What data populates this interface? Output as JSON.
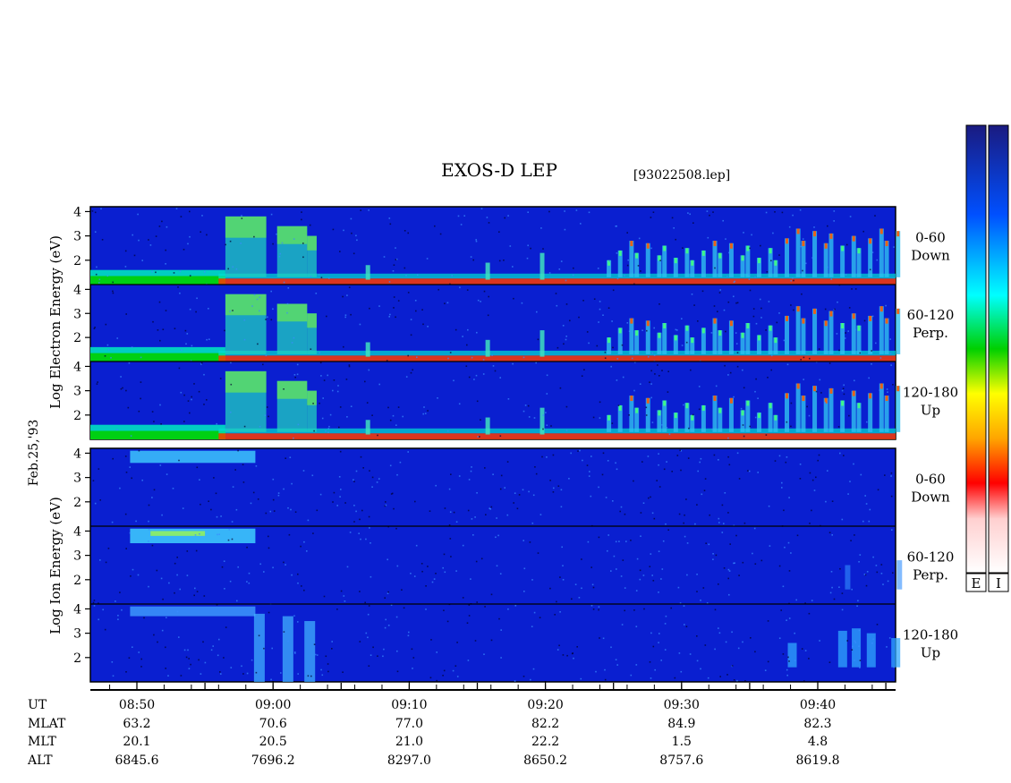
{
  "title": "EXOS-D LEP",
  "file_label": "[93022508.lep]",
  "date_label": "Feb.25,'93",
  "colors": {
    "background": "#ffffff",
    "panel_base": "#0a1fd0",
    "colorbar_stops": [
      "#ffffff",
      "#ff0000",
      "#ffa500",
      "#ffff00",
      "#00d000",
      "#00ffff",
      "#0050ff",
      "#1a1a80"
    ]
  },
  "panels": {
    "electron": {
      "ylabel_lines": [
        "Log",
        "Electron",
        "Energy",
        "(eV)"
      ],
      "subpanels": [
        {
          "angle": "0-60",
          "direction": "Down",
          "yticks": [
            "4",
            "3",
            "2"
          ]
        },
        {
          "angle": "60-120",
          "direction": "Perp.",
          "yticks": [
            "4",
            "3",
            "2"
          ]
        },
        {
          "angle": "120-180",
          "direction": "Up",
          "yticks": [
            "4",
            "3",
            "2"
          ]
        }
      ]
    },
    "ion": {
      "ylabel_lines": [
        "Log",
        "Ion",
        "Energy",
        "(eV)"
      ],
      "subpanels": [
        {
          "angle": "0-60",
          "direction": "Down",
          "yticks": [
            "4",
            "3",
            "2"
          ]
        },
        {
          "angle": "60-120",
          "direction": "Perp.",
          "yticks": [
            "4",
            "3",
            "2"
          ]
        },
        {
          "angle": "120-180",
          "direction": "Up",
          "yticks": [
            "4",
            "3",
            "2"
          ]
        }
      ]
    }
  },
  "colorbars": {
    "labels": [
      "E",
      "I"
    ]
  },
  "time_axis": {
    "row_labels": [
      "UT",
      "MLAT",
      "MLT",
      "ALT"
    ],
    "ticks": [
      {
        "UT": "08:50",
        "MLAT": "63.2",
        "MLT": "20.1",
        "ALT": "6845.6"
      },
      {
        "UT": "09:00",
        "MLAT": "70.6",
        "MLT": "20.5",
        "ALT": "7696.2"
      },
      {
        "UT": "09:10",
        "MLAT": "77.0",
        "MLT": "21.0",
        "ALT": "8297.0"
      },
      {
        "UT": "09:20",
        "MLAT": "82.2",
        "MLT": "22.2",
        "ALT": "8650.2"
      },
      {
        "UT": "09:30",
        "MLAT": "84.9",
        "MLT": "1.5",
        "ALT": "8757.6"
      },
      {
        "UT": "09:40",
        "MLAT": "82.3",
        "MLT": "4.8",
        "ALT": "8619.8"
      }
    ]
  },
  "chart_data": {
    "type": "heatmap",
    "title": "EXOS-D LEP",
    "x_axis": {
      "label": "UT",
      "range": [
        "08:46",
        "09:46"
      ],
      "major_ticks": [
        "08:50",
        "09:00",
        "09:10",
        "09:20",
        "09:30",
        "09:40"
      ]
    },
    "y_axis": {
      "label": "Log Energy (eV)",
      "range": [
        1,
        4.2
      ],
      "ticks": [
        2,
        3,
        4
      ]
    },
    "series": [
      {
        "name": "Electron 0-60 Down"
      },
      {
        "name": "Electron 60-120 Perp."
      },
      {
        "name": "Electron 120-180 Up"
      },
      {
        "name": "Ion 0-60 Down"
      },
      {
        "name": "Ion 60-120 Perp."
      },
      {
        "name": "Ion 120-180 Up"
      }
    ]
  }
}
